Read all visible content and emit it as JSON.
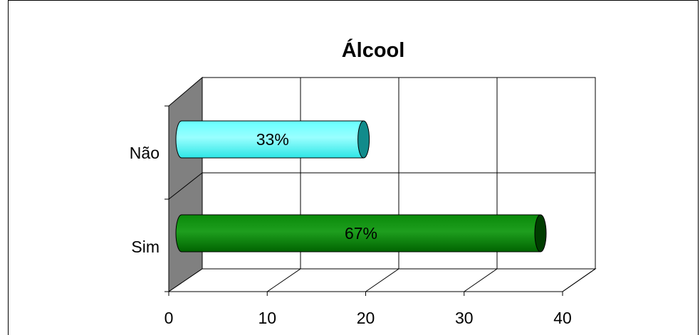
{
  "chart_data": {
    "type": "bar",
    "orientation": "horizontal",
    "three_d": true,
    "title": "Álcool",
    "xlabel": "",
    "ylabel": "",
    "xlim": [
      0,
      40
    ],
    "x_ticks": [
      "0",
      "10",
      "20",
      "30",
      "40"
    ],
    "x_tick_values": [
      0,
      10,
      20,
      30,
      40
    ],
    "categories": [
      "Sim",
      "Não"
    ],
    "values": [
      35,
      17
    ],
    "data_labels": [
      "67%",
      "33%"
    ],
    "colors": [
      "#007a00",
      "#33ffff"
    ],
    "grid": true,
    "legend": "none"
  }
}
